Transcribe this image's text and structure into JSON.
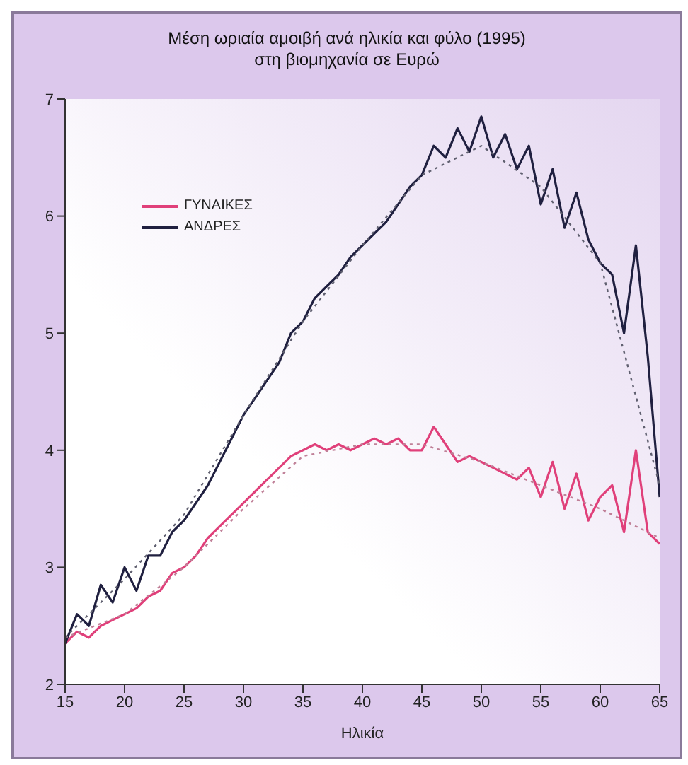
{
  "chart_data": {
    "type": "line",
    "title": "Μέση ωριαία αμοιβή ανά ηλικία και φύλο (1995)\nστη βιομηχανία σε Ευρώ",
    "xlabel": "Ηλικία",
    "x": [
      15,
      16,
      17,
      18,
      19,
      20,
      21,
      22,
      23,
      24,
      25,
      26,
      27,
      28,
      29,
      30,
      31,
      32,
      33,
      34,
      35,
      36,
      37,
      38,
      39,
      40,
      41,
      42,
      43,
      44,
      45,
      46,
      47,
      48,
      49,
      50,
      51,
      52,
      53,
      54,
      55,
      56,
      57,
      58,
      59,
      60,
      61,
      62,
      63,
      64,
      65
    ],
    "series": [
      {
        "name": "ΓΥΝΑΙΚΕΣ",
        "color": "#e0407a",
        "values": [
          2.35,
          2.45,
          2.4,
          2.5,
          2.55,
          2.6,
          2.65,
          2.75,
          2.8,
          2.95,
          3.0,
          3.1,
          3.25,
          3.35,
          3.45,
          3.55,
          3.65,
          3.75,
          3.85,
          3.95,
          4.0,
          4.05,
          4.0,
          4.05,
          4.0,
          4.05,
          4.1,
          4.05,
          4.1,
          4.0,
          4.0,
          4.2,
          4.05,
          3.9,
          3.95,
          3.9,
          3.85,
          3.8,
          3.75,
          3.85,
          3.6,
          3.9,
          3.5,
          3.8,
          3.4,
          3.6,
          3.7,
          3.3,
          4.0,
          3.3,
          3.2
        ]
      },
      {
        "name": "ΑΝΔΡΕΣ",
        "color": "#202040",
        "values": [
          2.35,
          2.6,
          2.5,
          2.85,
          2.7,
          3.0,
          2.8,
          3.1,
          3.1,
          3.3,
          3.4,
          3.55,
          3.7,
          3.9,
          4.1,
          4.3,
          4.45,
          4.6,
          4.75,
          5.0,
          5.1,
          5.3,
          5.4,
          5.5,
          5.65,
          5.75,
          5.85,
          5.95,
          6.1,
          6.25,
          6.35,
          6.6,
          6.5,
          6.75,
          6.55,
          6.85,
          6.5,
          6.7,
          6.4,
          6.6,
          6.1,
          6.4,
          5.9,
          6.2,
          5.8,
          5.6,
          5.5,
          5.0,
          5.75,
          4.8,
          3.6
        ]
      },
      {
        "type": "line",
        "line_style": "dotted",
        "color": "#c08098",
        "x": [
          15,
          20,
          25,
          30,
          35,
          40,
          45,
          50,
          55,
          60,
          65
        ],
        "values": [
          2.4,
          2.6,
          3.0,
          3.5,
          3.95,
          4.05,
          4.05,
          3.9,
          3.7,
          3.5,
          3.25
        ]
      },
      {
        "type": "line",
        "line_style": "dotted",
        "color": "#606070",
        "x": [
          15,
          20,
          25,
          30,
          35,
          40,
          45,
          50,
          55,
          60,
          65
        ],
        "values": [
          2.4,
          2.9,
          3.45,
          4.3,
          5.1,
          5.75,
          6.35,
          6.6,
          6.25,
          5.6,
          3.7
        ]
      }
    ],
    "xlim": [
      15,
      65
    ],
    "xticks": [
      15,
      20,
      25,
      30,
      35,
      40,
      45,
      50,
      55,
      60,
      65
    ],
    "ylim": [
      2,
      7
    ],
    "yticks": [
      2,
      3,
      4,
      5,
      6,
      7
    ],
    "grid": false,
    "legend": "top left",
    "marker": "none",
    "line_style": "solid"
  }
}
